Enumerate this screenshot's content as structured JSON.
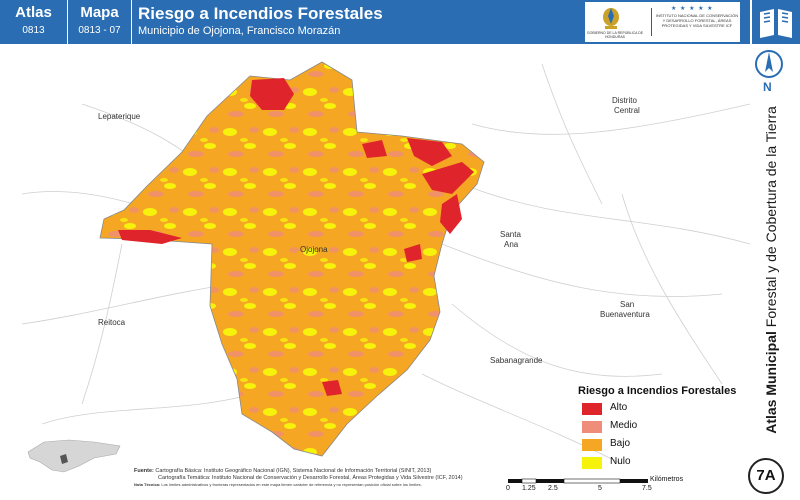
{
  "header": {
    "atlas_label": "Atlas",
    "atlas_code": "0813",
    "mapa_label": "Mapa",
    "mapa_code": "0813 - 07",
    "title": "Riesgo a Incendios Forestales",
    "subtitle": "Municipio de Ojojona, Francisco Morazán"
  },
  "logos": {
    "gov_caption": "GOBIERNO DE LA REPÚBLICA DE HONDURAS",
    "icf_stars": "★ ★ ★ ★ ★",
    "icf_text": "INSTITUTO NACIONAL DE CONSERVACIÓN Y DESARROLLO FORESTAL, ÁREAS PROTEGIDAS Y VIDA SILVESTRE ICF"
  },
  "north_label": "N",
  "side_title": {
    "bold": "Atlas Municipal",
    "normal": " Forestal y de Cobertura de la Tierra"
  },
  "badge": "7A",
  "places": {
    "lepaterique": "Lepaterique",
    "distrito_central_1": "Distrito",
    "distrito_central_2": "Central",
    "santa_ana_1": "Santa",
    "santa_ana_2": "Ana",
    "san_buenaventura_1": "San",
    "san_buenaventura_2": "Buenaventura",
    "reitoca": "Reitoca",
    "sabanagrande": "Sabanagrande",
    "ojojona": "Ojojona"
  },
  "legend": {
    "title": "Riesgo a Incendios Forestales",
    "items": [
      {
        "label": "Alto",
        "color": "#e0242b"
      },
      {
        "label": "Medio",
        "color": "#f08c7a"
      },
      {
        "label": "Bajo",
        "color": "#f5a623"
      },
      {
        "label": "Nulo",
        "color": "#f7f20c"
      }
    ]
  },
  "sources": {
    "label": "Fuente:",
    "line1": "Cartografía Básica: Instituto Geográfico Nacional (IGN), Sistema Nacional de Información Territorial (SINIT, 2013)",
    "line2": "Cartografía Temática: Instituto Nacional de Conservación y Desarrollo Forestal, Áreas Protegidas y Vida Silvestre (ICF, 2014)",
    "note_label": "Nota Técnica:",
    "note": "Los límites administrativos y fronteras representados en este mapa tienen carácter de referencia y no representan posición oficial sobre los límites."
  },
  "scale": {
    "ticks": [
      "0",
      "1.25",
      "2.5",
      "5",
      "7.5"
    ],
    "unit": "Kilómetros"
  },
  "colors": {
    "header_blue": "#2a6db3",
    "alto": "#e0242b",
    "medio": "#f08c7a",
    "bajo": "#f5a623",
    "nulo": "#f7f20c"
  }
}
